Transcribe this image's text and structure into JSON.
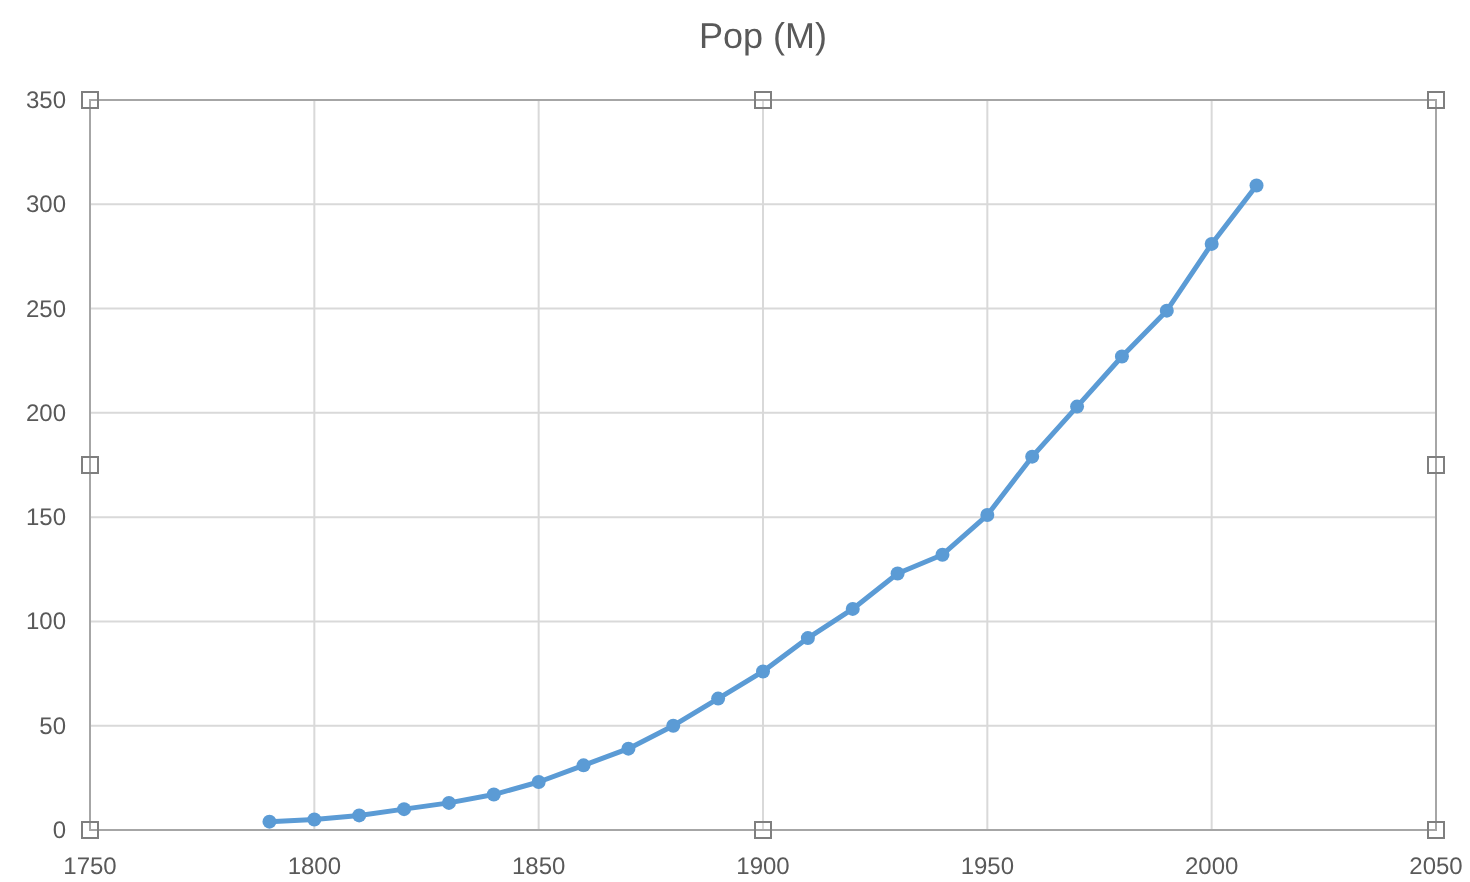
{
  "chart_data": {
    "type": "line",
    "title": "Pop (M)",
    "x": [
      1790,
      1800,
      1810,
      1820,
      1830,
      1840,
      1850,
      1860,
      1870,
      1880,
      1890,
      1900,
      1910,
      1920,
      1930,
      1940,
      1950,
      1960,
      1970,
      1980,
      1990,
      2000,
      2010
    ],
    "series": [
      {
        "color": "#5b9bd5",
        "values": [
          4,
          5,
          7,
          10,
          13,
          17,
          23,
          31,
          39,
          50,
          63,
          76,
          92,
          106,
          123,
          132,
          151,
          179,
          203,
          227,
          249,
          281,
          309
        ]
      }
    ],
    "xlim": [
      1750,
      2050
    ],
    "xticks": [
      1750,
      1800,
      1850,
      1900,
      1950,
      2000,
      2050
    ],
    "ylim": [
      0,
      350
    ],
    "yticks": [
      0,
      50,
      100,
      150,
      200,
      250,
      300,
      350
    ],
    "grid": true,
    "marker": "circle",
    "line_style": "solid"
  }
}
